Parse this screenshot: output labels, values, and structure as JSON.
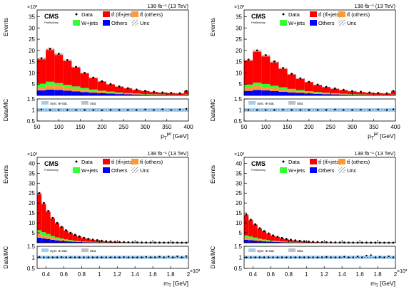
{
  "figure": {
    "colors": {
      "ttjets": "#ff0000",
      "ttothers": "#ff9933",
      "wjets": "#33ff33",
      "others": "#0000ff",
      "unc_ratio": "#a4cdf0",
      "unc_stat": "#c0c0c0",
      "data": "#000000"
    }
  },
  "chart_data": [
    {
      "type": "bar",
      "stacked": true,
      "cms_label": "CMS",
      "sub_label": "Preliminary",
      "lumi_label": "138 fb⁻¹ (13 TeV)",
      "exponent": "×10³",
      "ylabel": "Events",
      "ratio_label": "Data/MC",
      "xlabel": "p_T^{jet} [GeV]",
      "xlabel_main": "p",
      "xlabel_sup": "jet",
      "xlabel_sub": "T",
      "xlabel_unit": "[GeV]",
      "x_exponent": "",
      "xlim": [
        50,
        400
      ],
      "ylim": [
        0,
        38
      ],
      "yticks": [
        5,
        10,
        15,
        20,
        25,
        30,
        35
      ],
      "xticks": [
        50,
        100,
        150,
        200,
        250,
        300,
        350,
        400
      ],
      "xtick_labels": [
        "50",
        "100",
        "150",
        "200",
        "250",
        "300",
        "350",
        "400"
      ],
      "ratio_ylim": [
        0.5,
        1.5
      ],
      "ratio_yticks": [
        0.5,
        1,
        1.5
      ],
      "legend": [
        "Data",
        "tt̄ (tt̄+jets)",
        "tt̄ (others)",
        "W+jets",
        "Others",
        "Unc"
      ],
      "ratio_legend": [
        "Syst. ⊕ stat.",
        "Stat."
      ],
      "bin_edges": [
        50,
        70,
        90,
        110,
        130,
        150,
        170,
        190,
        210,
        230,
        250,
        270,
        290,
        310,
        330,
        350,
        370,
        390,
        400
      ],
      "series": [
        {
          "name": "Others",
          "key": "others",
          "values": [
            2.2,
            2.6,
            2.4,
            2.1,
            1.8,
            1.5,
            1.2,
            1.0,
            0.8,
            0.6,
            0.5,
            0.4,
            0.3,
            0.25,
            0.2,
            0.15,
            0.12,
            0.2
          ]
        },
        {
          "name": "tt̄ (others)",
          "key": "ttothers",
          "values": [
            1.6,
            1.9,
            1.7,
            1.4,
            1.2,
            1.0,
            0.8,
            0.6,
            0.5,
            0.4,
            0.3,
            0.25,
            0.2,
            0.15,
            0.12,
            0.1,
            0.08,
            0.15
          ]
        },
        {
          "name": "W+jets",
          "key": "wjets",
          "values": [
            1.4,
            1.6,
            1.4,
            1.2,
            1.0,
            0.8,
            0.6,
            0.5,
            0.4,
            0.3,
            0.25,
            0.2,
            0.15,
            0.12,
            0.1,
            0.08,
            0.06,
            0.1
          ]
        },
        {
          "name": "tt̄ (tt̄+jets)",
          "key": "ttjets",
          "values": [
            11.3,
            14.6,
            13.0,
            11.0,
            8.7,
            6.7,
            5.3,
            4.2,
            3.3,
            2.7,
            2.2,
            1.7,
            1.4,
            1.1,
            0.9,
            0.8,
            0.7,
            1.6
          ]
        }
      ],
      "data_values": [
        16.5,
        20.7,
        18.5,
        15.7,
        12.7,
        10.0,
        7.9,
        6.3,
        5.0,
        4.0,
        3.2,
        2.6,
        2.0,
        1.6,
        1.3,
        1.1,
        0.95,
        2.0
      ],
      "ratio_values": [
        1.02,
        1.0,
        1.0,
        1.0,
        1.0,
        1.0,
        1.0,
        0.99,
        1.0,
        1.0,
        1.0,
        1.0,
        1.02,
        1.0,
        1.03,
        1.0,
        1.02,
        1.05
      ]
    },
    {
      "type": "bar",
      "stacked": true,
      "cms_label": "CMS",
      "sub_label": "Preliminary",
      "lumi_label": "138 fb⁻¹ (13 TeV)",
      "exponent": "×10³",
      "ylabel": "Events",
      "ratio_label": "Data/MC",
      "xlabel": "p_T^{jet} [GeV]",
      "xlabel_main": "p",
      "xlabel_sup": "jet",
      "xlabel_sub": "T",
      "xlabel_unit": "[GeV]",
      "x_exponent": "",
      "xlim": [
        50,
        400
      ],
      "ylim": [
        0,
        38
      ],
      "yticks": [
        5,
        10,
        15,
        20,
        25,
        30,
        35
      ],
      "xticks": [
        50,
        100,
        150,
        200,
        250,
        300,
        350,
        400
      ],
      "xtick_labels": [
        "50",
        "100",
        "150",
        "200",
        "250",
        "300",
        "350",
        "400"
      ],
      "ratio_ylim": [
        0.5,
        1.5
      ],
      "ratio_yticks": [
        0.5,
        1,
        1.5
      ],
      "legend": [
        "Data",
        "tt̄ (tt̄+jets)",
        "tt̄ (others)",
        "W+jets",
        "Others",
        "Unc"
      ],
      "ratio_legend": [
        "Syst. ⊕ stat.",
        "Stat."
      ],
      "bin_edges": [
        50,
        70,
        90,
        110,
        130,
        150,
        170,
        190,
        210,
        230,
        250,
        270,
        290,
        310,
        330,
        350,
        370,
        390,
        400
      ],
      "series": [
        {
          "name": "Others",
          "key": "others",
          "values": [
            2.0,
            2.4,
            2.2,
            1.9,
            1.6,
            1.3,
            1.1,
            0.9,
            0.7,
            0.55,
            0.45,
            0.35,
            0.28,
            0.22,
            0.18,
            0.14,
            0.11,
            0.2
          ]
        },
        {
          "name": "tt̄ (others)",
          "key": "ttothers",
          "values": [
            1.5,
            1.8,
            1.6,
            1.3,
            1.1,
            0.9,
            0.7,
            0.55,
            0.45,
            0.35,
            0.28,
            0.22,
            0.18,
            0.14,
            0.11,
            0.09,
            0.07,
            0.13
          ]
        },
        {
          "name": "W+jets",
          "key": "wjets",
          "values": [
            1.3,
            1.5,
            1.3,
            1.1,
            0.9,
            0.7,
            0.55,
            0.45,
            0.35,
            0.28,
            0.22,
            0.18,
            0.14,
            0.11,
            0.09,
            0.07,
            0.05,
            0.1
          ]
        },
        {
          "name": "tt̄ (tt̄+jets)",
          "key": "ttjets",
          "values": [
            11.0,
            14.2,
            12.7,
            10.7,
            8.5,
            6.6,
            5.2,
            4.1,
            3.2,
            2.6,
            2.1,
            1.7,
            1.3,
            1.1,
            0.9,
            0.8,
            0.7,
            1.5
          ]
        }
      ],
      "data_values": [
        15.9,
        20.0,
        17.9,
        15.1,
        12.2,
        9.6,
        7.6,
        6.0,
        4.8,
        3.8,
        3.1,
        2.5,
        1.9,
        1.6,
        1.3,
        1.1,
        0.9,
        1.95
      ],
      "ratio_values": [
        1.0,
        1.0,
        1.0,
        1.0,
        1.01,
        1.0,
        1.0,
        1.0,
        1.0,
        1.0,
        1.02,
        1.0,
        1.0,
        1.01,
        1.0,
        1.02,
        1.0,
        1.03
      ]
    },
    {
      "type": "bar",
      "stacked": true,
      "cms_label": "CMS",
      "sub_label": "Preliminary",
      "lumi_label": "138 fb⁻¹ (13 TeV)",
      "exponent": "×10³",
      "ylabel": "Events",
      "ratio_label": "Data/MC",
      "xlabel": "m_T [GeV]",
      "xlabel_main": "m",
      "xlabel_sup": "",
      "xlabel_sub": "T",
      "xlabel_unit": "[GeV]",
      "x_exponent": "×10³",
      "xlim": [
        0.3,
        2.0
      ],
      "ylim": [
        0,
        43
      ],
      "yticks": [
        5,
        10,
        15,
        20,
        25,
        30,
        35,
        40
      ],
      "xticks": [
        0.4,
        0.6,
        0.8,
        1.0,
        1.2,
        1.4,
        1.6,
        1.8,
        2.0
      ],
      "xtick_labels": [
        "0.4",
        "0.6",
        "0.8",
        "1",
        "1.2",
        "1.4",
        "1.6",
        "1.8",
        "2"
      ],
      "ratio_ylim": [
        0.5,
        1.5
      ],
      "ratio_yticks": [
        0.5,
        1,
        1.5
      ],
      "legend": [
        "Data",
        "tt̄ (tt̄+jets)",
        "tt̄ (others)",
        "W+jets",
        "Others",
        "Unc"
      ],
      "ratio_legend": [
        "Syst. ⊕ stat.",
        "Stat."
      ],
      "bin_edges": [
        0.3,
        0.35,
        0.4,
        0.45,
        0.5,
        0.55,
        0.6,
        0.65,
        0.7,
        0.75,
        0.8,
        0.85,
        0.9,
        0.95,
        1.0,
        1.05,
        1.1,
        1.15,
        1.2,
        1.25,
        1.3,
        1.35,
        1.4,
        1.45,
        1.5,
        1.55,
        1.6,
        1.65,
        1.7,
        1.75,
        1.8,
        1.85,
        1.9,
        1.95,
        2.0
      ],
      "series": [
        {
          "name": "Others",
          "key": "others",
          "values": [
            2.5,
            2.2,
            1.9,
            1.5,
            1.2,
            1.0,
            0.8,
            0.65,
            0.5,
            0.4,
            0.3,
            0.25,
            0.2,
            0.16,
            0.12,
            0.1,
            0.08,
            0.06,
            0.05,
            0.04,
            0.03,
            0.03,
            0.02,
            0.02,
            0.02,
            0.01,
            0.01,
            0.01,
            0.01,
            0.01,
            0.01,
            0.01,
            0.01,
            0.01
          ]
        },
        {
          "name": "tt̄ (others)",
          "key": "ttothers",
          "values": [
            2.0,
            1.6,
            1.3,
            1.0,
            0.8,
            0.65,
            0.5,
            0.4,
            0.3,
            0.25,
            0.2,
            0.15,
            0.12,
            0.1,
            0.08,
            0.06,
            0.05,
            0.04,
            0.03,
            0.03,
            0.02,
            0.02,
            0.02,
            0.01,
            0.01,
            0.01,
            0.01,
            0.01,
            0.01,
            0.01,
            0.01,
            0.01,
            0.01,
            0.01
          ]
        },
        {
          "name": "W+jets",
          "key": "wjets",
          "values": [
            1.8,
            1.5,
            1.2,
            0.9,
            0.7,
            0.55,
            0.45,
            0.35,
            0.27,
            0.2,
            0.16,
            0.12,
            0.1,
            0.08,
            0.06,
            0.05,
            0.04,
            0.03,
            0.02,
            0.02,
            0.02,
            0.01,
            0.01,
            0.01,
            0.01,
            0.01,
            0.01,
            0.01,
            0.01,
            0.01,
            0.01,
            0.01,
            0.01,
            0.01
          ]
        },
        {
          "name": "tt̄ (tt̄+jets)",
          "key": "ttjets",
          "values": [
            18.7,
            14.7,
            11.6,
            9.1,
            7.3,
            5.8,
            4.55,
            3.6,
            2.93,
            2.35,
            1.84,
            1.48,
            1.18,
            0.96,
            0.74,
            0.59,
            0.48,
            0.37,
            0.3,
            0.24,
            0.19,
            0.15,
            0.12,
            0.1,
            0.08,
            0.07,
            0.06,
            0.05,
            0.04,
            0.04,
            0.03,
            0.03,
            0.03,
            0.02
          ]
        }
      ],
      "data_values": [
        25.0,
        20.0,
        16.0,
        12.5,
        10.0,
        8.0,
        6.3,
        5.0,
        4.0,
        3.2,
        2.5,
        2.0,
        1.6,
        1.3,
        1.0,
        0.8,
        0.65,
        0.5,
        0.4,
        0.33,
        0.26,
        0.21,
        0.17,
        0.14,
        0.12,
        0.1,
        0.09,
        0.08,
        0.07,
        0.07,
        0.06,
        0.06,
        0.05,
        0.05
      ],
      "ratio_values": [
        1.02,
        1.0,
        1.0,
        1.0,
        1.0,
        1.01,
        1.0,
        1.0,
        1.0,
        1.0,
        1.0,
        1.0,
        1.0,
        1.0,
        1.0,
        1.0,
        1.0,
        1.0,
        1.0,
        1.01,
        1.0,
        1.0,
        1.0,
        1.0,
        1.02,
        1.0,
        1.0,
        1.03,
        1.0,
        1.04,
        1.0,
        1.05,
        1.0,
        1.06
      ]
    },
    {
      "type": "bar",
      "stacked": true,
      "cms_label": "CMS",
      "sub_label": "Preliminary",
      "lumi_label": "138 fb⁻¹ (13 TeV)",
      "exponent": "×10³",
      "ylabel": "Events",
      "ratio_label": "Data/MC",
      "xlabel": "m_T [GeV]",
      "xlabel_main": "m",
      "xlabel_sup": "",
      "xlabel_sub": "T",
      "xlabel_unit": "[GeV]",
      "x_exponent": "×10³",
      "xlim": [
        0.3,
        2.0
      ],
      "ylim": [
        0,
        43
      ],
      "yticks": [
        5,
        10,
        15,
        20,
        25,
        30,
        35,
        40
      ],
      "xticks": [
        0.4,
        0.6,
        0.8,
        1.0,
        1.2,
        1.4,
        1.6,
        1.8,
        2.0
      ],
      "xtick_labels": [
        "0.4",
        "0.6",
        "0.8",
        "1",
        "1.2",
        "1.4",
        "1.6",
        "1.8",
        "2"
      ],
      "ratio_ylim": [
        0.5,
        1.5
      ],
      "ratio_yticks": [
        0.5,
        1,
        1.5
      ],
      "legend": [
        "Data",
        "tt̄ (tt̄+jets)",
        "tt̄ (others)",
        "W+jets",
        "Others",
        "Unc"
      ],
      "ratio_legend": [
        "Syst. ⊕ stat.",
        "Stat."
      ],
      "bin_edges": [
        0.3,
        0.35,
        0.4,
        0.45,
        0.5,
        0.55,
        0.6,
        0.65,
        0.7,
        0.75,
        0.8,
        0.85,
        0.9,
        0.95,
        1.0,
        1.05,
        1.1,
        1.15,
        1.2,
        1.25,
        1.3,
        1.35,
        1.4,
        1.45,
        1.5,
        1.55,
        1.6,
        1.65,
        1.7,
        1.75,
        1.8,
        1.85,
        1.9,
        1.95,
        2.0
      ],
      "series": [
        {
          "name": "Others",
          "key": "others",
          "values": [
            1.5,
            1.3,
            1.1,
            0.9,
            0.7,
            0.6,
            0.5,
            0.4,
            0.3,
            0.25,
            0.2,
            0.15,
            0.12,
            0.1,
            0.08,
            0.06,
            0.05,
            0.04,
            0.03,
            0.03,
            0.02,
            0.02,
            0.01,
            0.01,
            0.01,
            0.01,
            0.01,
            0.01,
            0.01,
            0.01,
            0.01,
            0.01,
            0.01,
            0.01
          ]
        },
        {
          "name": "tt̄ (others)",
          "key": "ttothers",
          "values": [
            1.2,
            1.0,
            0.8,
            0.6,
            0.5,
            0.4,
            0.3,
            0.25,
            0.2,
            0.15,
            0.12,
            0.1,
            0.08,
            0.06,
            0.05,
            0.04,
            0.03,
            0.03,
            0.02,
            0.02,
            0.01,
            0.01,
            0.01,
            0.01,
            0.01,
            0.01,
            0.01,
            0.01,
            0.01,
            0.01,
            0.01,
            0.01,
            0.01,
            0.01
          ]
        },
        {
          "name": "W+jets",
          "key": "wjets",
          "values": [
            1.0,
            0.9,
            0.7,
            0.55,
            0.45,
            0.35,
            0.27,
            0.2,
            0.16,
            0.12,
            0.1,
            0.08,
            0.06,
            0.05,
            0.04,
            0.03,
            0.02,
            0.02,
            0.02,
            0.01,
            0.01,
            0.01,
            0.01,
            0.01,
            0.01,
            0.01,
            0.01,
            0.01,
            0.01,
            0.01,
            0.01,
            0.01,
            0.01,
            0.01
          ]
        },
        {
          "name": "tt̄ (tt̄+jets)",
          "key": "ttjets",
          "values": [
            10.5,
            8.4,
            6.7,
            5.25,
            4.25,
            3.35,
            2.63,
            2.15,
            1.74,
            1.38,
            1.08,
            0.87,
            0.7,
            0.56,
            0.44,
            0.35,
            0.29,
            0.23,
            0.18,
            0.14,
            0.12,
            0.1,
            0.08,
            0.07,
            0.06,
            0.05,
            0.04,
            0.04,
            0.03,
            0.03,
            0.03,
            0.02,
            0.02,
            0.02
          ]
        }
      ],
      "data_values": [
        14.2,
        11.6,
        9.3,
        7.3,
        5.9,
        4.7,
        3.7,
        3.0,
        2.4,
        1.9,
        1.5,
        1.2,
        0.96,
        0.77,
        0.61,
        0.48,
        0.39,
        0.32,
        0.25,
        0.2,
        0.16,
        0.14,
        0.11,
        0.1,
        0.09,
        0.08,
        0.07,
        0.07,
        0.06,
        0.06,
        0.05,
        0.05,
        0.05,
        0.05
      ],
      "ratio_values": [
        1.0,
        1.0,
        1.0,
        1.0,
        1.0,
        1.0,
        1.0,
        1.0,
        1.0,
        1.0,
        1.0,
        1.0,
        1.0,
        1.0,
        1.0,
        1.0,
        1.0,
        1.0,
        1.02,
        1.0,
        1.0,
        1.0,
        1.03,
        1.0,
        1.0,
        1.04,
        1.0,
        1.08,
        1.1,
        1.0,
        1.02,
        1.0,
        1.05,
        1.0
      ]
    }
  ]
}
